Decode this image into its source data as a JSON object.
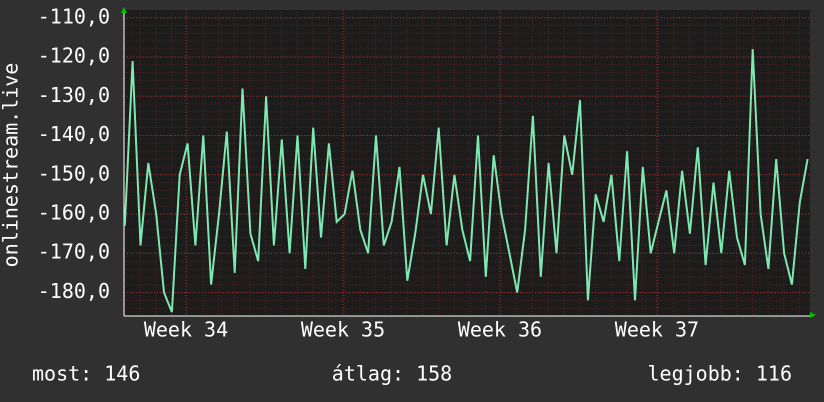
{
  "chart_data": {
    "type": "line",
    "y_label": "onlinestream.live",
    "x": [
      33.61,
      33.66,
      33.71,
      33.76,
      33.81,
      33.86,
      33.91,
      33.96,
      34.01,
      34.06,
      34.11,
      34.16,
      34.21,
      34.26,
      34.31,
      34.36,
      34.41,
      34.46,
      34.51,
      34.56,
      34.61,
      34.66,
      34.71,
      34.76,
      34.81,
      34.86,
      34.91,
      34.96,
      35.01,
      35.06,
      35.11,
      35.16,
      35.21,
      35.26,
      35.31,
      35.36,
      35.41,
      35.46,
      35.51,
      35.56,
      35.61,
      35.66,
      35.71,
      35.76,
      35.81,
      35.86,
      35.91,
      35.96,
      36.01,
      36.06,
      36.11,
      36.16,
      36.21,
      36.26,
      36.31,
      36.36,
      36.41,
      36.46,
      36.51,
      36.56,
      36.61,
      36.66,
      36.71,
      36.76,
      36.81,
      36.86,
      36.91,
      36.96,
      37.01,
      37.06,
      37.11,
      37.16,
      37.21,
      37.26,
      37.31,
      37.36,
      37.41,
      37.46,
      37.51,
      37.56,
      37.61,
      37.66,
      37.71,
      37.76,
      37.81,
      37.86,
      37.91,
      37.96
    ],
    "series": [
      {
        "name": "onlinestream.live",
        "color": "#7ee8b0",
        "values": [
          -163,
          -121,
          -168,
          -147,
          -160,
          -180,
          -185,
          -150,
          -142,
          -168,
          -140,
          -178,
          -160,
          -139,
          -175,
          -128,
          -165,
          -172,
          -130,
          -168,
          -141,
          -170,
          -140,
          -174,
          -138,
          -166,
          -142,
          -162,
          -160,
          -149,
          -164,
          -170,
          -140,
          -168,
          -162,
          -148,
          -177,
          -165,
          -150,
          -160,
          -138,
          -168,
          -150,
          -164,
          -172,
          -140,
          -176,
          -145,
          -160,
          -170,
          -180,
          -164,
          -135,
          -176,
          -147,
          -170,
          -140,
          -150,
          -131,
          -182,
          -155,
          -162,
          -150,
          -172,
          -144,
          -182,
          -148,
          -170,
          -162,
          -154,
          -170,
          -149,
          -165,
          -143,
          -173,
          -152,
          -170,
          -149,
          -166,
          -173,
          -118,
          -160,
          -174,
          -146,
          -170,
          -178,
          -157,
          -146
        ]
      }
    ],
    "xlim": [
      33.605,
      37.975
    ],
    "xticks": [
      {
        "value": 34,
        "label": "Week 34"
      },
      {
        "value": 35,
        "label": "Week 35"
      },
      {
        "value": 36,
        "label": "Week 36"
      },
      {
        "value": 37,
        "label": "Week 37"
      }
    ],
    "ylim": [
      -186,
      -108
    ],
    "yticks": [
      {
        "value": -110,
        "label": "-110,0"
      },
      {
        "value": -120,
        "label": "-120,0"
      },
      {
        "value": -130,
        "label": "-130,0"
      },
      {
        "value": -140,
        "label": "-140,0"
      },
      {
        "value": -150,
        "label": "-150,0"
      },
      {
        "value": -160,
        "label": "-160,0"
      },
      {
        "value": -170,
        "label": "-170,0"
      },
      {
        "value": -180,
        "label": "-180,0"
      }
    ],
    "grid": true,
    "stats": [
      "most: 146",
      "átlag: 158",
      "legjobb: 116"
    ]
  }
}
